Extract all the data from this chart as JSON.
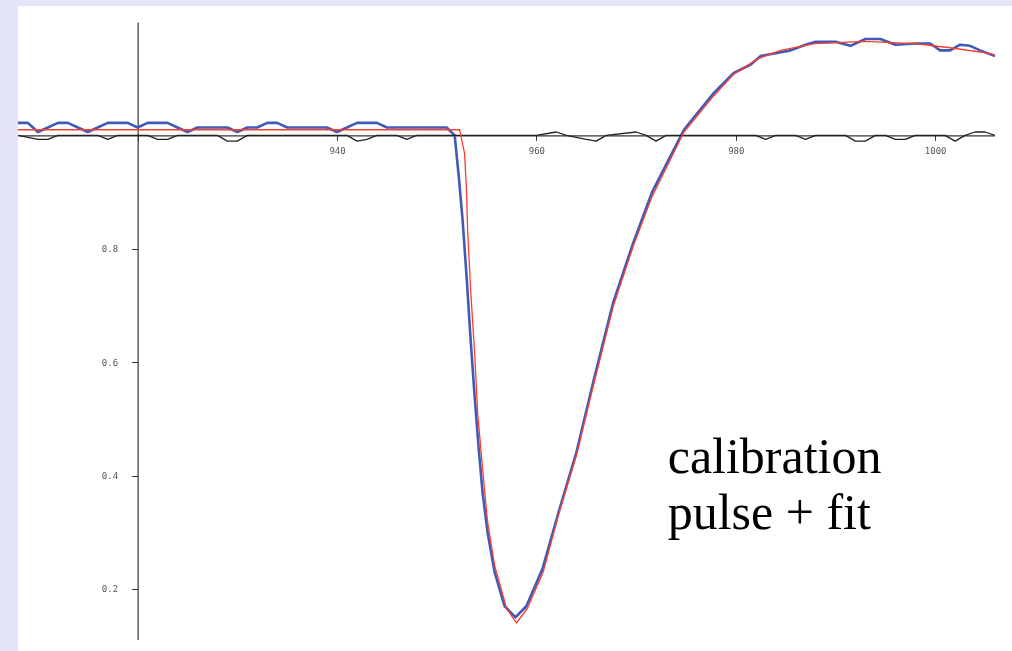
{
  "chart_data": {
    "type": "line",
    "xlim": [
      908,
      1006
    ],
    "ylim": [
      0.11,
      1.2
    ],
    "xticks": [
      {
        "value": 920,
        "label": null
      },
      940,
      960,
      980,
      1000
    ],
    "yticks": [
      0.2,
      0.4,
      0.6,
      0.8,
      {
        "value": 1,
        "label": null
      }
    ],
    "grid": false,
    "marker": "none",
    "line_style": "solid",
    "annotations": [
      "calibration pulse + fit"
    ],
    "series": [
      {
        "color": "#3f5bb5",
        "x": [
          908,
          909,
          910,
          911,
          912,
          913,
          914,
          915,
          916,
          917,
          918,
          919,
          920,
          921,
          922,
          923,
          924,
          925,
          926,
          927,
          928,
          929,
          930,
          931,
          932,
          933,
          934,
          935,
          936,
          937,
          938,
          939,
          940,
          941,
          942,
          943,
          944,
          945,
          946,
          947,
          948,
          949,
          950,
          951,
          951.8,
          952.2,
          952.6,
          953.0,
          953.4,
          953.8,
          954.2,
          954.6,
          955.1,
          955.8,
          956.8,
          957.9,
          959.0,
          960.6,
          962.3,
          964.0,
          965.7,
          967.7,
          969.7,
          971.6,
          974.8,
          977.8,
          979.8,
          981.5,
          982.5,
          984.0,
          985.5,
          987.0,
          988.0,
          990.0,
          991.5,
          993.0,
          994.5,
          996.0,
          998.0,
          999.5,
          1000.5,
          1001.5,
          1002.5,
          1003.5,
          1004.5,
          1006
        ],
        "values": [
          1.022,
          1.022,
          1.006,
          1.014,
          1.022,
          1.022,
          1.014,
          1.006,
          1.014,
          1.022,
          1.022,
          1.022,
          1.014,
          1.022,
          1.022,
          1.022,
          1.014,
          1.006,
          1.014,
          1.014,
          1.014,
          1.014,
          1.006,
          1.014,
          1.014,
          1.022,
          1.022,
          1.014,
          1.014,
          1.014,
          1.014,
          1.014,
          1.006,
          1.014,
          1.022,
          1.022,
          1.022,
          1.014,
          1.014,
          1.014,
          1.014,
          1.014,
          1.014,
          1.014,
          1.0,
          0.93,
          0.85,
          0.75,
          0.64,
          0.54,
          0.45,
          0.37,
          0.3,
          0.23,
          0.17,
          0.15,
          0.17,
          0.235,
          0.34,
          0.44,
          0.565,
          0.705,
          0.81,
          0.9,
          1.01,
          1.075,
          1.11,
          1.125,
          1.14,
          1.145,
          1.15,
          1.16,
          1.165,
          1.165,
          1.158,
          1.17,
          1.17,
          1.16,
          1.162,
          1.162,
          1.15,
          1.15,
          1.16,
          1.158,
          1.15,
          1.14
        ]
      },
      {
        "color": "#222222",
        "x": [
          908,
          910,
          911,
          912,
          916,
          917,
          918,
          921,
          922,
          923,
          924,
          928,
          929,
          930,
          931,
          941,
          942,
          943,
          944,
          946,
          947,
          948,
          960,
          962,
          963,
          965,
          966,
          967,
          970,
          971,
          972,
          973,
          982,
          983,
          984,
          986,
          987,
          988,
          991,
          992,
          993,
          994,
          995,
          996,
          997,
          998,
          1001,
          1002,
          1003,
          1004,
          1005,
          1006
        ],
        "values": [
          1.0,
          0.993,
          0.993,
          1.0,
          1.0,
          0.993,
          1.0,
          1.0,
          0.993,
          0.993,
          1.0,
          1.0,
          0.99,
          0.99,
          1.0,
          1.0,
          0.99,
          0.993,
          1.0,
          1.0,
          0.993,
          1.0,
          1.0,
          1.006,
          1.0,
          0.993,
          0.99,
          1.0,
          1.006,
          1.0,
          0.99,
          1.0,
          1.0,
          0.993,
          1.0,
          1.0,
          0.993,
          1.0,
          1.0,
          0.99,
          0.99,
          1.0,
          1.0,
          0.993,
          0.993,
          1.0,
          1.0,
          0.99,
          1.0,
          1.006,
          1.006,
          1.0
        ]
      },
      {
        "color": "#ff3b30",
        "x": [
          908,
          952.3,
          952.8,
          953.0,
          953.1,
          953.4,
          953.8,
          954.1,
          954.6,
          955.1,
          955.8,
          957.0,
          958.0,
          959.1,
          960.7,
          962.3,
          964.0,
          965.7,
          967.7,
          969.7,
          971.6,
          974.8,
          977.8,
          979.8,
          982.2,
          984.5,
          987.9,
          992.9,
          997.9,
          1001.3,
          1005.3,
          1006
        ],
        "values": [
          1.01,
          1.01,
          0.968,
          0.898,
          0.833,
          0.728,
          0.617,
          0.512,
          0.412,
          0.319,
          0.242,
          0.166,
          0.14,
          0.166,
          0.231,
          0.336,
          0.435,
          0.558,
          0.698,
          0.804,
          0.892,
          1.006,
          1.07,
          1.108,
          1.135,
          1.15,
          1.162,
          1.166,
          1.162,
          1.155,
          1.145,
          1.142
        ]
      }
    ]
  }
}
